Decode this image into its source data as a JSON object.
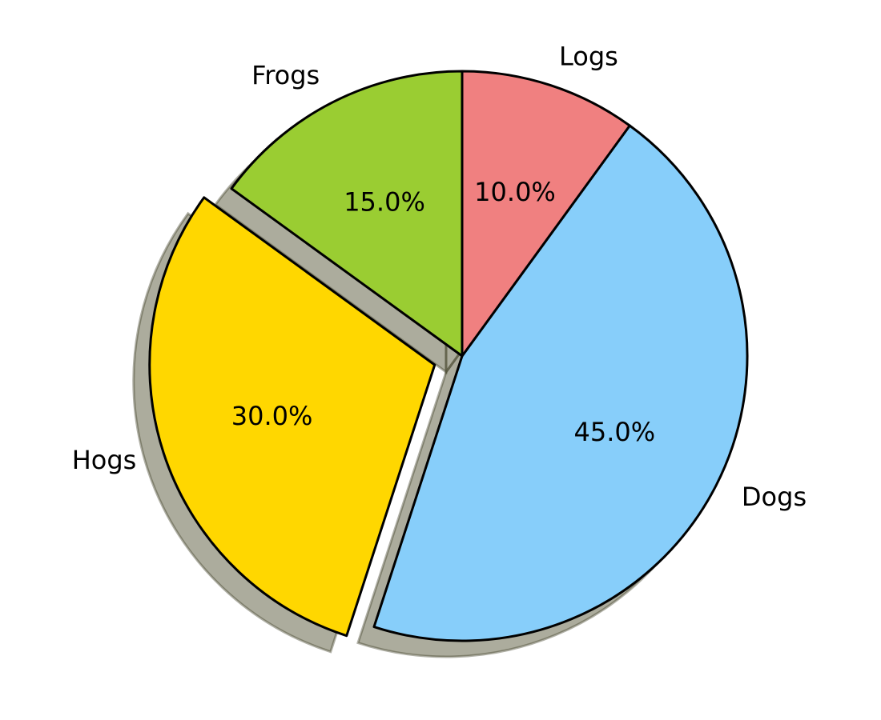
{
  "chart_data": {
    "type": "pie",
    "labels": [
      "Frogs",
      "Hogs",
      "Dogs",
      "Logs"
    ],
    "values": [
      15,
      30,
      45,
      10
    ],
    "percent_labels": [
      "15.0%",
      "30.0%",
      "45.0%",
      "10.0%"
    ],
    "colors": [
      "#9acd32",
      "#ffd700",
      "#87cefa",
      "#f08080"
    ],
    "exploded": [
      "Hogs"
    ],
    "shadow": true,
    "start_angle_deg": 90,
    "direction": "counterclockwise"
  }
}
